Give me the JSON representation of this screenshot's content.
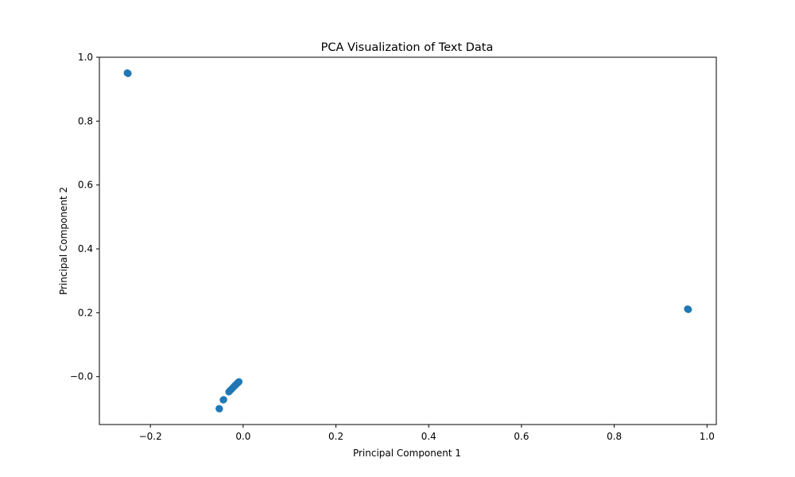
{
  "chart_data": {
    "type": "scatter",
    "title": "PCA Visualization of Text Data",
    "xlabel": "Principal Component 1",
    "ylabel": "Principal Component 2",
    "xlim": [
      -0.31,
      1.02
    ],
    "ylim": [
      -0.15,
      1.0
    ],
    "x_ticks": [
      -0.2,
      0.0,
      0.2,
      0.4,
      0.6,
      0.8,
      1.0
    ],
    "x_tick_labels": [
      "−0.2",
      "0.0",
      "0.2",
      "0.4",
      "0.6",
      "0.8",
      "1.0"
    ],
    "y_ticks": [
      0.0,
      0.2,
      0.4,
      0.6,
      0.8,
      1.0
    ],
    "y_tick_labels": [
      "−0.0",
      "0.2",
      "0.4",
      "0.6",
      "0.8",
      "1.0"
    ],
    "grid": false,
    "marker_color": "#1f77b4",
    "series": [
      {
        "x": [
          -0.25,
          -0.249,
          -0.248,
          0.958,
          0.959,
          0.96,
          -0.052,
          -0.051,
          -0.043,
          -0.042,
          -0.031,
          -0.029,
          -0.027,
          -0.025,
          -0.023,
          -0.021,
          -0.019,
          -0.017,
          -0.015,
          -0.013,
          -0.011,
          -0.01,
          -0.009
        ],
        "y": [
          0.951,
          0.95,
          0.949,
          0.212,
          0.211,
          0.21,
          -0.1,
          -0.101,
          -0.073,
          -0.072,
          -0.048,
          -0.045,
          -0.042,
          -0.039,
          -0.036,
          -0.033,
          -0.03,
          -0.027,
          -0.024,
          -0.021,
          -0.019,
          -0.017,
          -0.016
        ]
      }
    ]
  }
}
